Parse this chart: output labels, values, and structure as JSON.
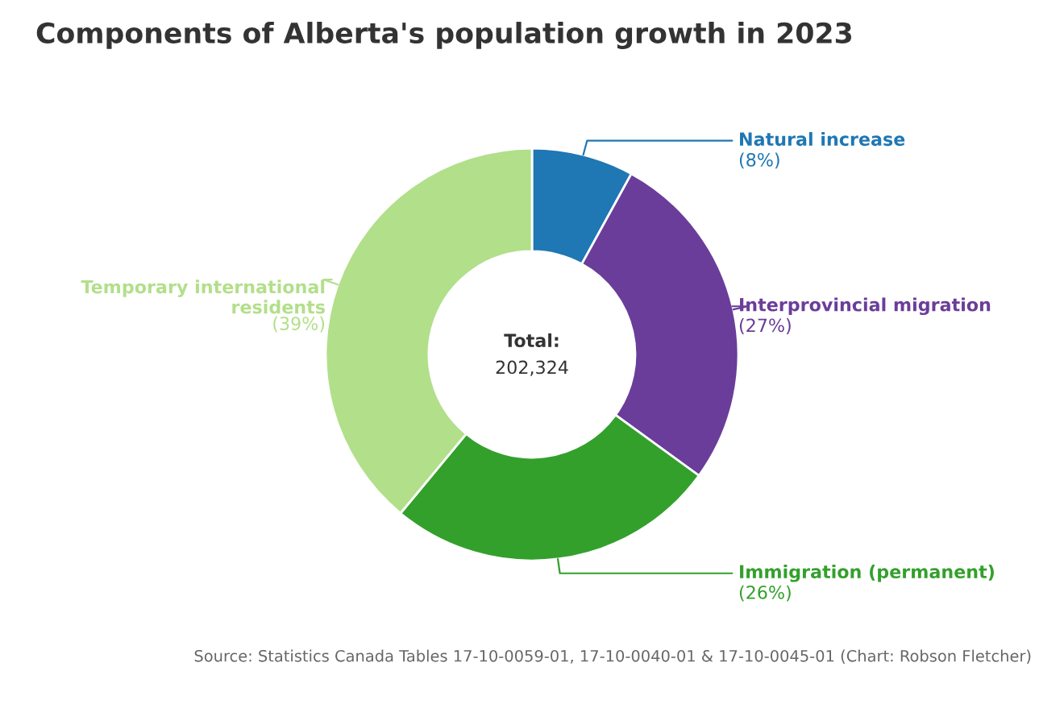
{
  "chart_data": {
    "type": "donut",
    "title": "Components of Alberta's population growth in 2023",
    "categories": [
      "Natural increase",
      "Interprovincial migration",
      "Immigration (permanent)",
      "Temporary international residents"
    ],
    "values": [
      8,
      27,
      26,
      39
    ],
    "value_labels": [
      "(8%)",
      "(27%)",
      "(26%)",
      "(39%)"
    ],
    "colors": [
      "#1f77b4",
      "#6a3d9a",
      "#33a02c",
      "#b2df8a"
    ],
    "annotations": [
      "Total:",
      "202,324",
      "Source: Statistics Canada Tables 17-10-0059-01, 17-10-0040-01 & 17-10-0045-01 (Chart: Robson Fletcher)"
    ],
    "legend": false
  }
}
